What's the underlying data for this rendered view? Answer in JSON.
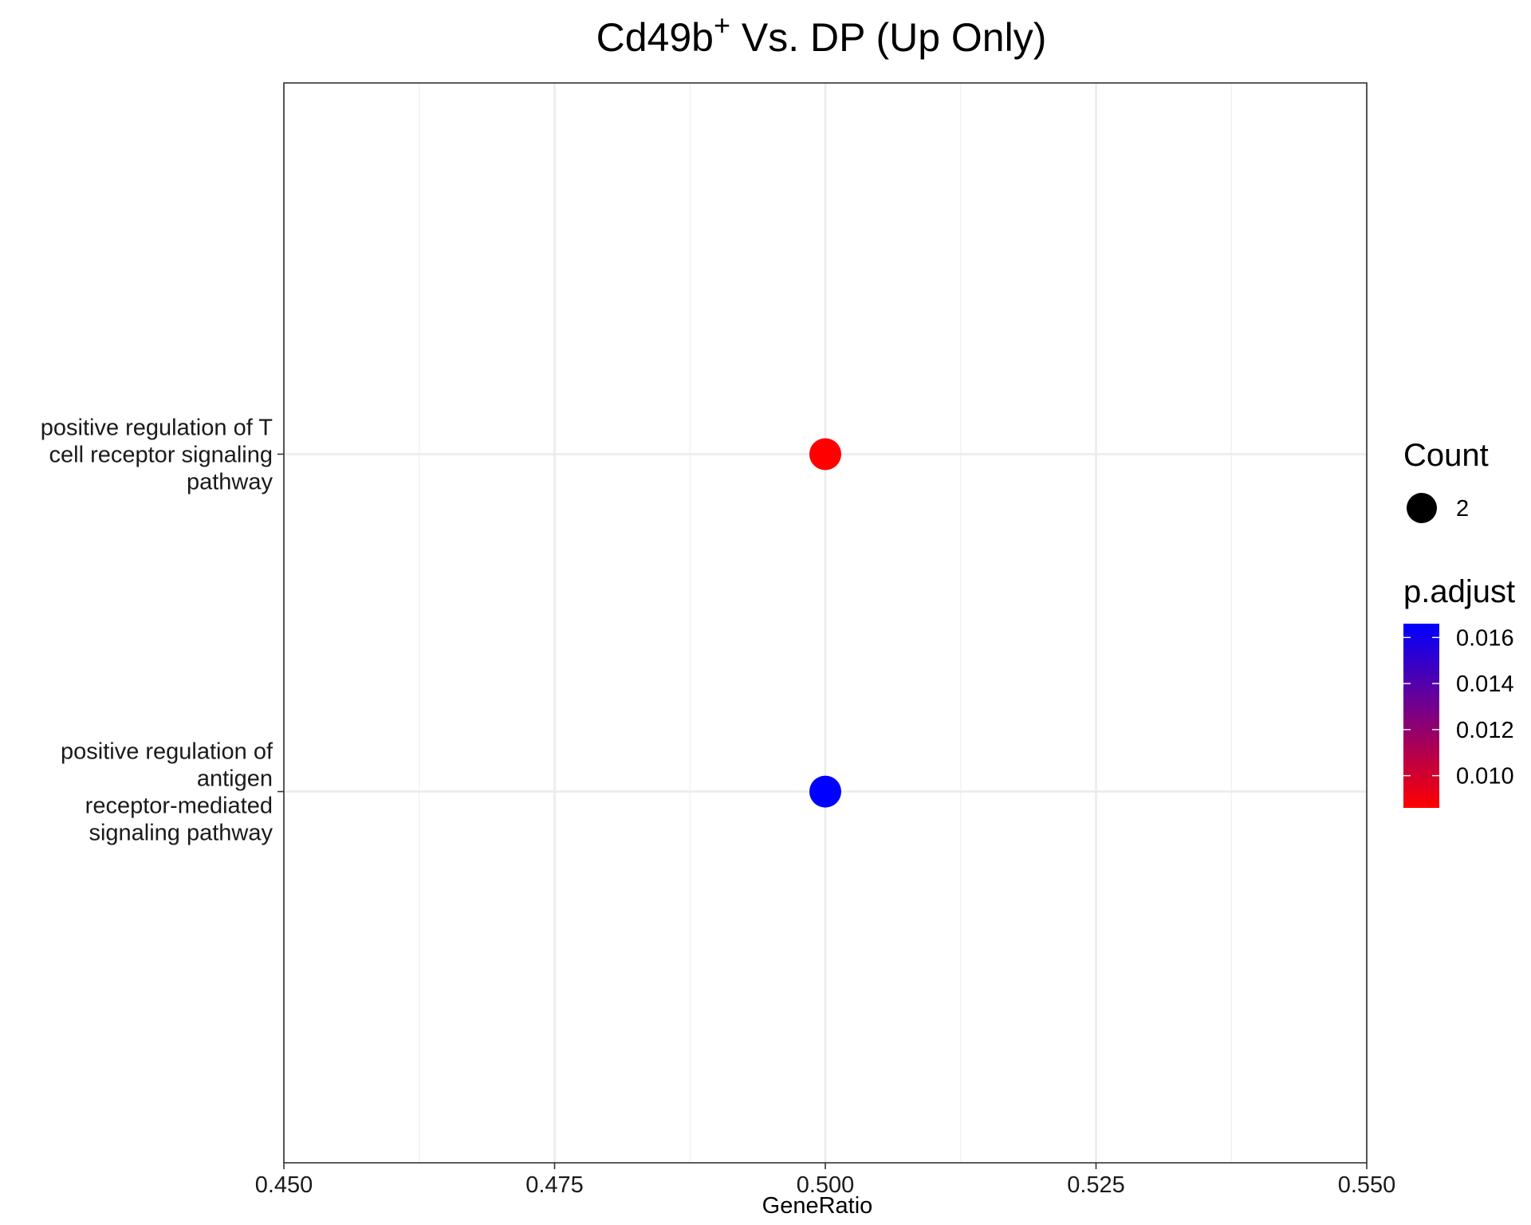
{
  "chart_data": {
    "type": "scatter",
    "title_main": "Cd49b",
    "title_sup": "+",
    "title_rest": " Vs. DP (Up Only)",
    "xlabel": "GeneRatio",
    "ylabel": "",
    "xlim": [
      0.45,
      0.55
    ],
    "x_ticks": [
      "0.450",
      "0.475",
      "0.500",
      "0.525",
      "0.550"
    ],
    "x_tick_values": [
      0.45,
      0.475,
      0.5,
      0.525,
      0.55
    ],
    "grid": true,
    "categories": [
      {
        "lines": [
          "positive regulation of",
          "antigen",
          "receptor-mediated",
          "signaling pathway"
        ]
      },
      {
        "lines": [
          "positive regulation of T",
          "cell receptor signaling",
          "pathway"
        ]
      }
    ],
    "points": [
      {
        "category_index": 1,
        "x": 0.5,
        "count": 2,
        "p_adjust": 0.0086
      },
      {
        "category_index": 0,
        "x": 0.5,
        "count": 2,
        "p_adjust": 0.0166
      }
    ],
    "size_legend": {
      "title": "Count",
      "labels": [
        "2"
      ]
    },
    "color_legend": {
      "title": "p.adjust",
      "low_color": "#ff0000",
      "high_color": "#0000ff",
      "min": 0.0086,
      "max": 0.0166,
      "ticks": [
        {
          "value": 0.016,
          "label": "0.016"
        },
        {
          "value": 0.014,
          "label": "0.014"
        },
        {
          "value": 0.012,
          "label": "0.012"
        },
        {
          "value": 0.01,
          "label": "0.010"
        }
      ]
    },
    "legend_position": "right"
  }
}
